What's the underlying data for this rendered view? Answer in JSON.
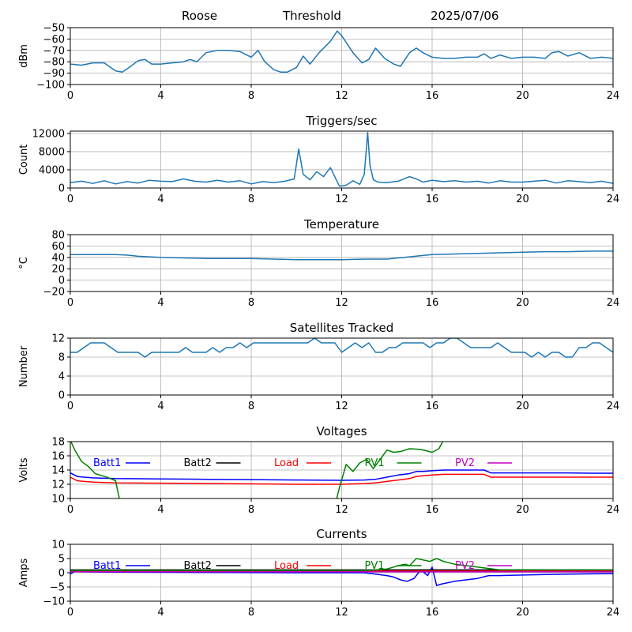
{
  "header": {
    "station": "Roose",
    "mode": "Threshold",
    "date": "2025/07/06"
  },
  "colors": {
    "series": "#1f77b4",
    "batt1": "#0000ff",
    "batt2": "#000000",
    "load": "#ff0000",
    "pv1": "#008000",
    "pv2": "#c000c0",
    "grid": "#b0b0b0"
  },
  "chart_data": [
    {
      "type": "line",
      "title": "",
      "ylabel": "dBm",
      "xlim": [
        0,
        24
      ],
      "ylim": [
        -100,
        -50
      ],
      "xticks": [
        0,
        4,
        8,
        12,
        16,
        20,
        24
      ],
      "yticks": [
        -100,
        -90,
        -80,
        -70,
        -60,
        -50
      ],
      "grid": true,
      "series": [
        {
          "name": "",
          "color": "#1f77b4",
          "x": [
            0,
            0.5,
            1,
            1.5,
            2,
            2.3,
            2.6,
            3,
            3.3,
            3.6,
            4,
            4.5,
            5,
            5.3,
            5.6,
            6,
            6.5,
            7,
            7.5,
            8,
            8.3,
            8.6,
            9,
            9.3,
            9.6,
            10,
            10.3,
            10.6,
            11,
            11.5,
            11.8,
            12,
            12.5,
            12.9,
            13.2,
            13.5,
            13.9,
            14.3,
            14.6,
            15,
            15.3,
            15.6,
            16,
            16.5,
            17,
            17.5,
            18,
            18.3,
            18.6,
            19,
            19.5,
            20,
            20.5,
            21,
            21.3,
            21.6,
            22,
            22.5,
            23,
            23.5,
            24
          ],
          "y": [
            -82,
            -83,
            -81,
            -81,
            -88,
            -89,
            -85,
            -79,
            -78,
            -82,
            -82,
            -81,
            -80,
            -78,
            -80,
            -72,
            -70,
            -70,
            -71,
            -76,
            -70,
            -80,
            -87,
            -89,
            -89,
            -85,
            -75,
            -82,
            -72,
            -62,
            -53,
            -57,
            -72,
            -81,
            -78,
            -68,
            -77,
            -82,
            -84,
            -72,
            -68,
            -72,
            -76,
            -77,
            -77,
            -76,
            -76,
            -73,
            -77,
            -74,
            -77,
            -76,
            -76,
            -77,
            -72,
            -71,
            -75,
            -72,
            -77,
            -76,
            -77
          ]
        }
      ]
    },
    {
      "type": "line",
      "title": "Triggers/sec",
      "ylabel": "Count",
      "xlim": [
        0,
        24
      ],
      "ylim": [
        0,
        12500
      ],
      "xticks": [
        0,
        4,
        8,
        12,
        16,
        20,
        24
      ],
      "yticks": [
        0,
        4000,
        8000,
        12000
      ],
      "grid": true,
      "series": [
        {
          "name": "",
          "color": "#1f77b4",
          "x": [
            0,
            0.5,
            1,
            1.5,
            2,
            2.5,
            3,
            3.5,
            4,
            4.5,
            5,
            5.5,
            6,
            6.5,
            7,
            7.5,
            8,
            8.5,
            9,
            9.5,
            9.9,
            10.1,
            10.3,
            10.6,
            10.9,
            11.2,
            11.5,
            11.9,
            12.2,
            12.5,
            12.8,
            13.0,
            13.15,
            13.25,
            13.4,
            13.6,
            14,
            14.5,
            15,
            15.3,
            15.6,
            16,
            16.5,
            17,
            17.5,
            18,
            18.5,
            19,
            19.5,
            20,
            20.5,
            21,
            21.5,
            22,
            22.5,
            23,
            23.5,
            24
          ],
          "y": [
            1200,
            1500,
            1000,
            1600,
            900,
            1400,
            1100,
            1700,
            1500,
            1400,
            2000,
            1500,
            1300,
            1700,
            1300,
            1600,
            900,
            1400,
            1200,
            1500,
            2000,
            8600,
            3000,
            1800,
            3600,
            2500,
            4500,
            400,
            600,
            1600,
            800,
            3000,
            12200,
            5000,
            1800,
            1300,
            1200,
            1500,
            2500,
            2000,
            1300,
            1700,
            1400,
            1600,
            1300,
            1500,
            1100,
            1600,
            1300,
            1300,
            1500,
            1700,
            1100,
            1600,
            1400,
            1200,
            1500,
            1000
          ]
        }
      ]
    },
    {
      "type": "line",
      "title": "Temperature",
      "ylabel": "°C",
      "xlim": [
        0,
        24
      ],
      "ylim": [
        -20,
        80
      ],
      "xticks": [
        0,
        4,
        8,
        12,
        16,
        20,
        24
      ],
      "yticks": [
        -20,
        0,
        20,
        40,
        60,
        80
      ],
      "grid": true,
      "series": [
        {
          "name": "",
          "color": "#1f77b4",
          "x": [
            0,
            1,
            2,
            2.5,
            3,
            3.5,
            4,
            5,
            6,
            7,
            8,
            9,
            10,
            11,
            12,
            13,
            14,
            14.5,
            15,
            15.5,
            16,
            17,
            18,
            19,
            20,
            21,
            22,
            23,
            24
          ],
          "y": [
            45,
            45,
            45,
            44,
            42,
            41,
            40,
            39,
            38,
            38,
            38,
            37,
            36,
            36,
            36,
            37,
            37,
            39,
            41,
            43,
            45,
            46,
            47,
            48,
            49,
            50,
            50,
            51,
            51
          ]
        }
      ]
    },
    {
      "type": "line",
      "title": "Satellites Tracked",
      "ylabel": "Number",
      "xlim": [
        0,
        24
      ],
      "ylim": [
        0,
        12
      ],
      "xticks": [
        0,
        4,
        8,
        12,
        16,
        20,
        24
      ],
      "yticks": [
        0,
        4,
        8,
        12
      ],
      "grid": true,
      "series": [
        {
          "name": "",
          "color": "#1f77b4",
          "x": [
            0,
            0.3,
            0.6,
            0.9,
            1.2,
            1.5,
            1.8,
            2.1,
            2.4,
            2.7,
            3,
            3.3,
            3.6,
            3.9,
            4.2,
            4.5,
            4.8,
            5.1,
            5.4,
            5.7,
            6,
            6.3,
            6.6,
            6.9,
            7.2,
            7.5,
            7.8,
            8.1,
            8.4,
            8.7,
            9,
            9.3,
            9.6,
            9.9,
            10.2,
            10.5,
            10.8,
            11.1,
            11.4,
            11.7,
            12,
            12.3,
            12.6,
            12.9,
            13.2,
            13.5,
            13.8,
            14.1,
            14.4,
            14.7,
            15,
            15.3,
            15.6,
            15.9,
            16.2,
            16.5,
            16.8,
            17.1,
            17.4,
            17.7,
            18,
            18.3,
            18.6,
            18.9,
            19.2,
            19.5,
            19.8,
            20.1,
            20.4,
            20.7,
            21,
            21.3,
            21.6,
            21.9,
            22.2,
            22.5,
            22.8,
            23.1,
            23.4,
            23.7,
            24
          ],
          "y": [
            9,
            9,
            10,
            11,
            11,
            11,
            10,
            9,
            9,
            9,
            9,
            8,
            9,
            9,
            9,
            9,
            9,
            10,
            9,
            9,
            9,
            10,
            9,
            10,
            10,
            11,
            10,
            11,
            11,
            11,
            11,
            11,
            11,
            11,
            11,
            11,
            12,
            11,
            11,
            11,
            9,
            10,
            11,
            10,
            11,
            9,
            9,
            10,
            10,
            11,
            11,
            11,
            11,
            10,
            11,
            11,
            12,
            12,
            11,
            10,
            10,
            10,
            10,
            11,
            10,
            9,
            9,
            9,
            8,
            9,
            8,
            9,
            9,
            8,
            8,
            10,
            10,
            11,
            11,
            10,
            9
          ]
        }
      ]
    },
    {
      "type": "line",
      "title": "Voltages",
      "ylabel": "Volts",
      "xlim": [
        0,
        24
      ],
      "ylim": [
        10,
        18
      ],
      "xticks": [
        0,
        4,
        8,
        12,
        16,
        20,
        24
      ],
      "yticks": [
        10,
        12,
        14,
        16,
        18
      ],
      "grid": true,
      "legend": "top, single row",
      "series": [
        {
          "name": "Batt1",
          "color": "#0000ff",
          "x": [
            0,
            0.3,
            0.6,
            1,
            2,
            4,
            6,
            8,
            10,
            12,
            13,
            13.5,
            14,
            14.5,
            15,
            15.3,
            15.6,
            16,
            16.5,
            17,
            17.5,
            18,
            18.3,
            18.6,
            19,
            20,
            21,
            22,
            23,
            24
          ],
          "y": [
            13.6,
            13.1,
            13.0,
            12.9,
            12.8,
            12.75,
            12.7,
            12.65,
            12.6,
            12.55,
            12.6,
            12.7,
            13.0,
            13.3,
            13.5,
            13.8,
            13.8,
            13.9,
            14.0,
            14.0,
            14.0,
            14.0,
            14.0,
            13.6,
            13.6,
            13.6,
            13.6,
            13.6,
            13.55,
            13.55
          ]
        },
        {
          "name": "Batt2",
          "color": "#000000",
          "x": [],
          "y": []
        },
        {
          "name": "Load",
          "color": "#ff0000",
          "x": [
            0,
            0.3,
            0.6,
            1,
            2,
            4,
            6,
            8,
            10,
            12,
            13,
            13.5,
            14,
            14.5,
            15,
            15.3,
            15.6,
            16,
            16.5,
            17,
            17.5,
            18,
            18.3,
            18.6,
            19,
            20,
            21,
            22,
            23,
            24
          ],
          "y": [
            13.0,
            12.5,
            12.4,
            12.3,
            12.2,
            12.15,
            12.1,
            12.05,
            12.0,
            12.0,
            12.1,
            12.2,
            12.4,
            12.6,
            12.8,
            13.1,
            13.2,
            13.3,
            13.4,
            13.4,
            13.4,
            13.4,
            13.4,
            13.0,
            13.0,
            13.0,
            13.0,
            13.0,
            13.0,
            13.0
          ]
        },
        {
          "name": "PV1",
          "color": "#008000",
          "x": [
            0,
            0.2,
            0.5,
            0.8,
            1.1,
            1.4,
            1.7,
            2.0,
            2.1,
            2.2,
            2.3,
            2.5,
            3.0,
            11.7,
            11.9,
            12.2,
            12.5,
            12.8,
            13.1,
            13.4,
            13.7,
            14.0,
            14.3,
            14.6,
            15.0,
            15.5,
            16.0,
            16.3,
            16.5,
            16.8
          ],
          "y": [
            18.2,
            16.8,
            15.2,
            14.5,
            13.5,
            13.2,
            12.9,
            12.5,
            11.0,
            9.5,
            9.0,
            9.0,
            9.0,
            9.0,
            11.5,
            14.8,
            13.8,
            15.0,
            15.5,
            14.2,
            15.5,
            16.8,
            16.5,
            16.6,
            17.0,
            16.9,
            16.5,
            17.0,
            18.2,
            18.5
          ]
        },
        {
          "name": "PV2",
          "color": "#c000c0",
          "x": [],
          "y": []
        }
      ]
    },
    {
      "type": "line",
      "title": "Currents",
      "ylabel": "Amps",
      "xlim": [
        0,
        24
      ],
      "ylim": [
        -10,
        10
      ],
      "xticks": [
        0,
        4,
        8,
        12,
        16,
        20,
        24
      ],
      "yticks": [
        -10,
        -5,
        0,
        5,
        10
      ],
      "grid": true,
      "legend": "top, single row",
      "series": [
        {
          "name": "Batt1",
          "color": "#0000ff",
          "x": [
            0,
            0.2,
            0.5,
            2,
            6,
            10,
            13,
            13.5,
            14,
            14.3,
            14.6,
            14.9,
            15.2,
            15.5,
            15.8,
            16.0,
            16.2,
            16.4,
            17,
            17.5,
            18,
            18.5,
            19,
            20,
            21,
            22,
            23,
            24
          ],
          "y": [
            -0.5,
            0.5,
            0.3,
            0.2,
            0.1,
            0.0,
            0.0,
            -0.5,
            -1.0,
            -1.5,
            -2.5,
            -3.0,
            -2.0,
            1.0,
            -1.0,
            2.0,
            -4.5,
            -4.0,
            -3.0,
            -2.5,
            -2.0,
            -1.0,
            -1.0,
            -0.8,
            -0.6,
            -0.5,
            -0.4,
            -0.3
          ]
        },
        {
          "name": "Batt2",
          "color": "#000000",
          "x": [
            0,
            4,
            8,
            12,
            16,
            20,
            24
          ],
          "y": [
            1.0,
            1.0,
            1.0,
            1.0,
            1.0,
            1.0,
            1.0
          ]
        },
        {
          "name": "Load",
          "color": "#ff0000",
          "x": [
            0,
            4,
            8,
            12,
            16,
            20,
            24
          ],
          "y": [
            0.6,
            0.6,
            0.6,
            0.6,
            0.6,
            0.6,
            0.6
          ]
        },
        {
          "name": "PV1",
          "color": "#008000",
          "x": [
            0,
            2,
            4,
            8,
            12,
            13,
            13.5,
            14,
            14.5,
            14.8,
            15.0,
            15.3,
            15.6,
            15.9,
            16.2,
            16.5,
            17,
            17.5,
            18,
            18.5,
            19,
            20,
            22,
            24
          ],
          "y": [
            0.8,
            0.8,
            0.8,
            0.8,
            0.8,
            0.8,
            1.0,
            1.3,
            2.5,
            3.0,
            2.5,
            5.0,
            4.5,
            4.0,
            5.0,
            4.0,
            3.0,
            2.5,
            2.0,
            1.5,
            1.0,
            1.0,
            1.0,
            1.0
          ]
        },
        {
          "name": "PV2",
          "color": "#c000c0",
          "x": [
            0,
            4,
            8,
            12,
            16,
            20,
            24
          ],
          "y": [
            0.3,
            0.3,
            0.3,
            0.3,
            0.3,
            0.3,
            0.3
          ]
        }
      ]
    }
  ]
}
